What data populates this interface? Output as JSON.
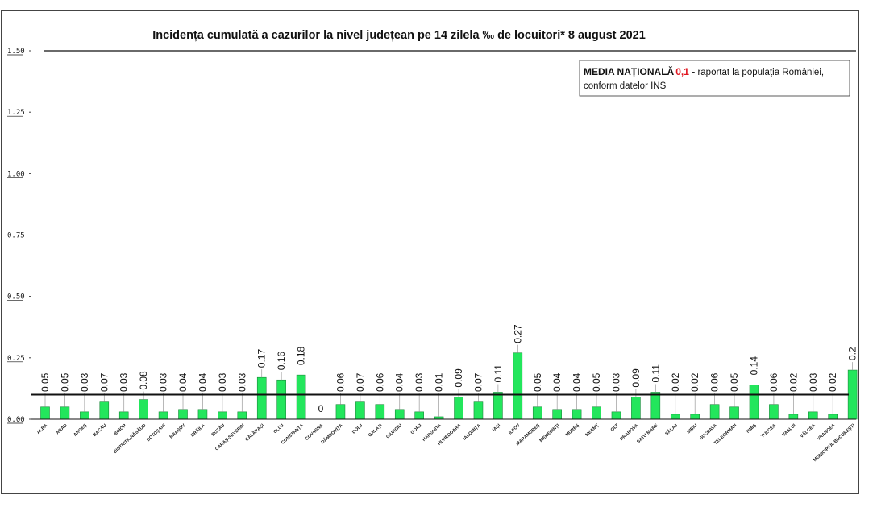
{
  "chart_data": {
    "type": "bar",
    "title": "Incidența cumulată a cazurilor la nivel județean pe 14 zilela ‰ de locuitori* 8 august 2021",
    "xlabel": "",
    "ylabel": "",
    "ylim": [
      0,
      1.5
    ],
    "yticks": [
      "0.00",
      "0.25",
      "0.50",
      "0.75",
      "1.00",
      "1.25",
      "1.50"
    ],
    "reference_line": 0.1,
    "bar_color": "#23e65c",
    "categories": [
      "ALBA",
      "ARAD",
      "ARGEȘ",
      "BACĂU",
      "BIHOR",
      "BISTRIȚA-NĂSĂUD",
      "BOTOȘANI",
      "BRAȘOV",
      "BRĂILA",
      "BUZĂU",
      "CARAȘ-SEVERIN",
      "CĂLĂRAȘI",
      "CLUJ",
      "CONSTANȚA",
      "COVASNA",
      "DÂMBOVIȚA",
      "DOLJ",
      "GALAȚI",
      "GIURGIU",
      "GORJ",
      "HARGHITA",
      "HUNEDOARA",
      "IALOMIȚA",
      "IAȘI",
      "ILFOV",
      "MARAMUREȘ",
      "MEHEDINȚI",
      "MUREȘ",
      "NEAMȚ",
      "OLT",
      "PRAHOVA",
      "SATU MARE",
      "SĂLAJ",
      "SIBIU",
      "SUCEAVA",
      "TELEORMAN",
      "TIMIȘ",
      "TULCEA",
      "VASLUI",
      "VÂLCEA",
      "VRANCEA",
      "MUNICIPIUL BUCUREȘTI"
    ],
    "values": [
      0.05,
      0.05,
      0.03,
      0.07,
      0.03,
      0.08,
      0.03,
      0.04,
      0.04,
      0.03,
      0.03,
      0.17,
      0.16,
      0.18,
      0,
      0.06,
      0.07,
      0.06,
      0.04,
      0.03,
      0.01,
      0.09,
      0.07,
      0.11,
      0.27,
      0.05,
      0.04,
      0.04,
      0.05,
      0.03,
      0.09,
      0.11,
      0.02,
      0.02,
      0.06,
      0.05,
      0.14,
      0.06,
      0.02,
      0.03,
      0.02,
      0.2
    ],
    "labels": [
      "0.05",
      "0.05",
      "0.03",
      "0.07",
      "0.03",
      "0.08",
      "0.03",
      "0.04",
      "0.04",
      "0.03",
      "0.03",
      "0.17",
      "0.16",
      "0.18",
      "0",
      "0.06",
      "0.07",
      "0.06",
      "0.04",
      "0.03",
      "0.01",
      "0.09",
      "0.07",
      "0.11",
      "0.27",
      "0.05",
      "0.04",
      "0.04",
      "0.05",
      "0.03",
      "0.09",
      "0.11",
      "0.02",
      "0.02",
      "0.06",
      "0.05",
      "0.14",
      "0.06",
      "0.02",
      "0.03",
      "0.02",
      "0.2"
    ],
    "label_rotation": "vertical",
    "legend_box": {
      "bold_text": "MEDIA NAȚIONALĂ",
      "value_text": "0,1",
      "dash_text": " -",
      "line1_rest": " raportat la populația României,",
      "line2": "conform datelor INS",
      "value_color": "#e0141e",
      "placement": "top-right"
    }
  }
}
